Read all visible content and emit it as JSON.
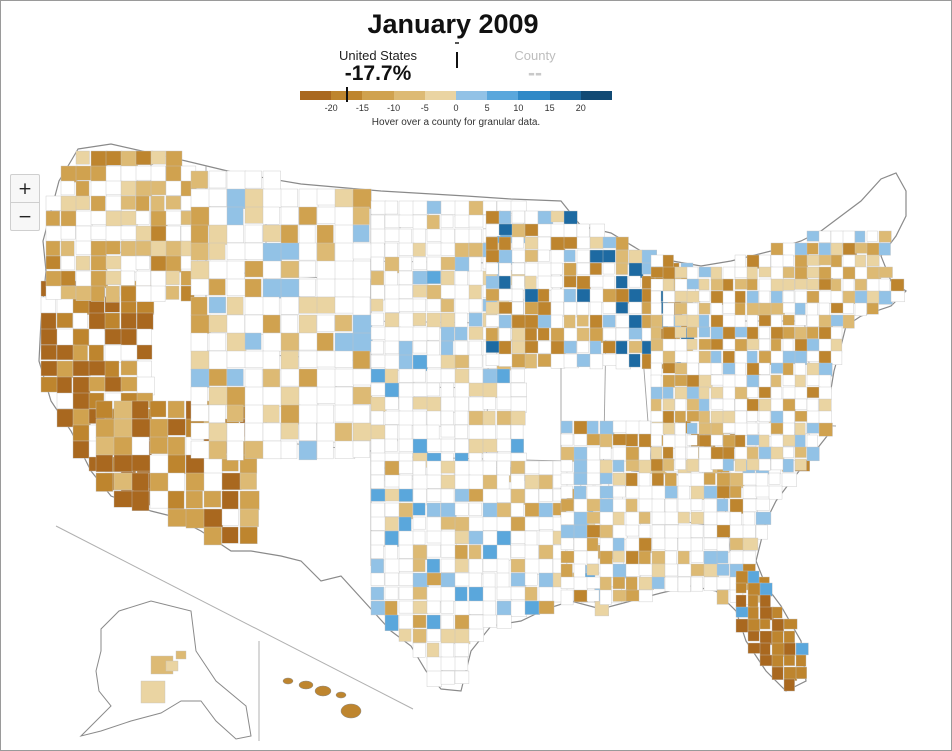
{
  "title": "January 2009",
  "summary": {
    "us_label": "United States",
    "us_value": "-17.7%",
    "us_value_number": -17.7,
    "county_label": "County",
    "county_value": "--"
  },
  "legend": {
    "ticks": [
      "-20",
      "-15",
      "-10",
      "-5",
      "0",
      "5",
      "10",
      "15",
      "20"
    ],
    "tick_values": [
      -20,
      -15,
      -10,
      -5,
      0,
      5,
      10,
      15,
      20
    ],
    "range": [
      -25,
      25
    ],
    "colors": [
      "#a9681f",
      "#be852e",
      "#d0a24f",
      "#ddba74",
      "#ead4a2",
      "#92c2e6",
      "#5aa7dc",
      "#2f89c7",
      "#1d6aa2",
      "#124a74"
    ]
  },
  "hint": "Hover over a county for granular data.",
  "zoom": {
    "in": "+",
    "out": "−"
  },
  "map_colors": {
    "border": "#a0a0a0",
    "state_border": "#8a8a8a",
    "no_data": "#ffffff"
  }
}
